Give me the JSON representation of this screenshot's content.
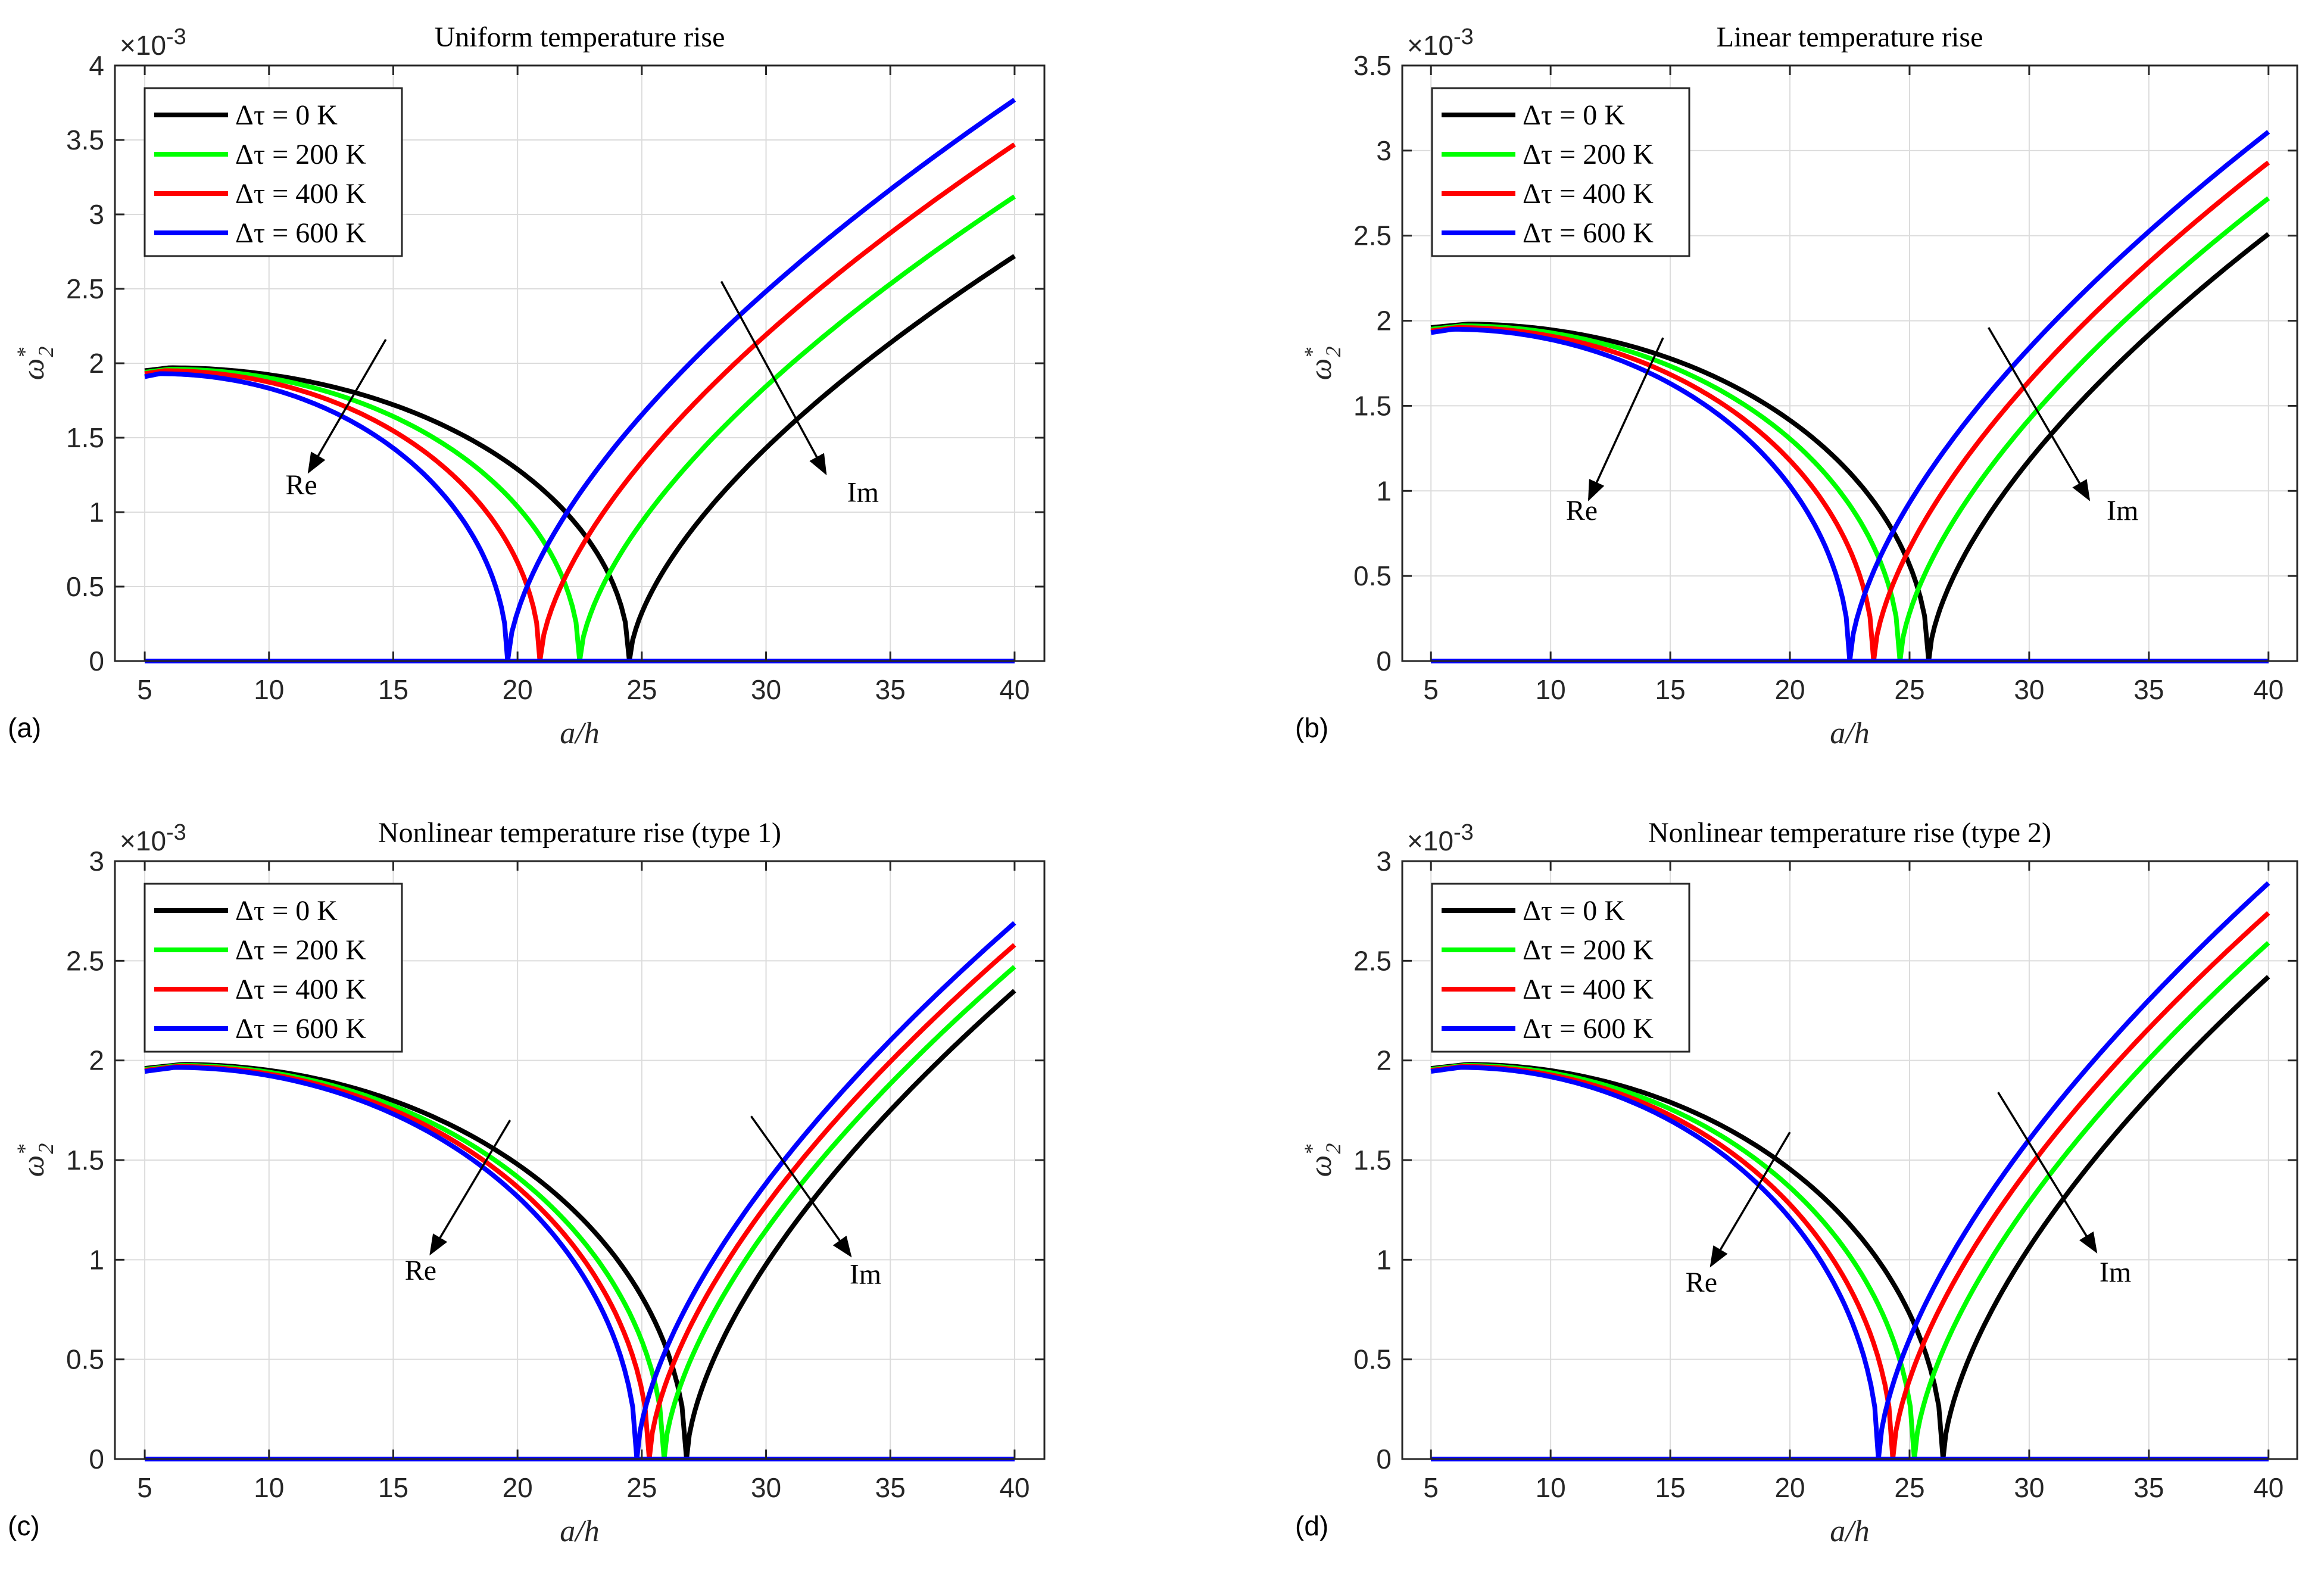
{
  "chart_data": [
    {
      "type": "line",
      "panel_label": "(a)",
      "title": "Uniform temperature rise",
      "xlabel": "a/h",
      "ylabel_main": "ω",
      "ylabel_sup": "*",
      "ylabel_sub": "2",
      "exponent_label": "×10",
      "exponent_power": "-3",
      "xlim": [
        3.8,
        41.2
      ],
      "ylim": [
        0,
        4
      ],
      "xticks": [
        5,
        10,
        15,
        20,
        25,
        30,
        35,
        40
      ],
      "xtick_labels": [
        "5",
        "10",
        "15",
        "20",
        "25",
        "30",
        "35",
        "40"
      ],
      "yticks": [
        0,
        0.5,
        1,
        1.5,
        2,
        2.5,
        3,
        3.5,
        4
      ],
      "ytick_labels": [
        "0",
        "0.5",
        "1",
        "1.5",
        "2",
        "2.5",
        "3",
        "3.5",
        "4"
      ],
      "grid": true,
      "legend_position": "top-left",
      "series": [
        {
          "name": "Δτ = 0 K",
          "color": "#000000",
          "x0": 24.5,
          "peak": 1.97,
          "peak_x": 6.0,
          "end": 2.72
        },
        {
          "name": "Δτ = 200 K",
          "color": "#00ff00",
          "x0": 22.5,
          "peak": 1.96,
          "peak_x": 6.0,
          "end": 3.12
        },
        {
          "name": "Δτ = 400 K",
          "color": "#ff0000",
          "x0": 20.9,
          "peak": 1.95,
          "peak_x": 5.8,
          "end": 3.47
        },
        {
          "name": "Δτ = 600 K",
          "color": "#0000ff",
          "x0": 19.6,
          "peak": 1.93,
          "peak_x": 5.6,
          "end": 3.77
        }
      ],
      "annotations": [
        {
          "text": "Re",
          "from": [
            14.7,
            2.16
          ],
          "to": [
            11.6,
            1.27
          ],
          "text_at": [
            11.3,
            1.12
          ]
        },
        {
          "text": "Im",
          "from": [
            28.2,
            2.55
          ],
          "to": [
            32.4,
            1.26
          ],
          "text_at": [
            33.9,
            1.07
          ]
        }
      ]
    },
    {
      "type": "line",
      "panel_label": "(b)",
      "title": "Linear temperature rise",
      "xlabel": "a/h",
      "ylabel_main": "ω",
      "ylabel_sup": "*",
      "ylabel_sub": "2",
      "exponent_label": "×10",
      "exponent_power": "-3",
      "xlim": [
        3.8,
        41.2
      ],
      "ylim": [
        0,
        3.5
      ],
      "xticks": [
        5,
        10,
        15,
        20,
        25,
        30,
        35,
        40
      ],
      "xtick_labels": [
        "5",
        "10",
        "15",
        "20",
        "25",
        "30",
        "35",
        "40"
      ],
      "yticks": [
        0,
        0.5,
        1,
        1.5,
        2,
        2.5,
        3,
        3.5
      ],
      "ytick_labels": [
        "0",
        "0.5",
        "1",
        "1.5",
        "2",
        "2.5",
        "3",
        "3.5"
      ],
      "grid": true,
      "legend_position": "top-left",
      "series": [
        {
          "name": "Δτ = 0 K",
          "color": "#000000",
          "x0": 25.8,
          "peak": 1.98,
          "peak_x": 6.5,
          "end": 2.51
        },
        {
          "name": "Δτ = 200 K",
          "color": "#00ff00",
          "x0": 24.6,
          "peak": 1.97,
          "peak_x": 6.3,
          "end": 2.72
        },
        {
          "name": "Δτ = 400 K",
          "color": "#ff0000",
          "x0": 23.5,
          "peak": 1.96,
          "peak_x": 6.1,
          "end": 2.93
        },
        {
          "name": "Δτ = 600 K",
          "color": "#0000ff",
          "x0": 22.5,
          "peak": 1.95,
          "peak_x": 5.9,
          "end": 3.11
        }
      ],
      "annotations": [
        {
          "text": "Re",
          "from": [
            14.7,
            1.9
          ],
          "to": [
            11.6,
            0.95
          ],
          "text_at": [
            11.3,
            0.83
          ]
        },
        {
          "text": "Im",
          "from": [
            28.3,
            1.96
          ],
          "to": [
            32.5,
            0.95
          ],
          "text_at": [
            33.9,
            0.83
          ]
        }
      ]
    },
    {
      "type": "line",
      "panel_label": "(c)",
      "title": "Nonlinear temperature rise (type 1)",
      "xlabel": "a/h",
      "ylabel_main": "ω",
      "ylabel_sup": "*",
      "ylabel_sub": "2",
      "exponent_label": "×10",
      "exponent_power": "-3",
      "xlim": [
        3.8,
        41.2
      ],
      "ylim": [
        0,
        3
      ],
      "xticks": [
        5,
        10,
        15,
        20,
        25,
        30,
        35,
        40
      ],
      "xtick_labels": [
        "5",
        "10",
        "15",
        "20",
        "25",
        "30",
        "35",
        "40"
      ],
      "yticks": [
        0,
        0.5,
        1,
        1.5,
        2,
        2.5,
        3
      ],
      "ytick_labels": [
        "0",
        "0.5",
        "1",
        "1.5",
        "2",
        "2.5",
        "3"
      ],
      "grid": true,
      "legend_position": "top-left",
      "series": [
        {
          "name": "Δτ = 0 K",
          "color": "#000000",
          "x0": 26.8,
          "peak": 1.98,
          "peak_x": 6.5,
          "end": 2.35
        },
        {
          "name": "Δτ = 200 K",
          "color": "#00ff00",
          "x0": 25.9,
          "peak": 1.975,
          "peak_x": 6.4,
          "end": 2.47
        },
        {
          "name": "Δτ = 400 K",
          "color": "#ff0000",
          "x0": 25.3,
          "peak": 1.97,
          "peak_x": 6.3,
          "end": 2.58
        },
        {
          "name": "Δτ = 600 K",
          "color": "#0000ff",
          "x0": 24.8,
          "peak": 1.965,
          "peak_x": 6.2,
          "end": 2.69
        }
      ],
      "annotations": [
        {
          "text": "Re",
          "from": [
            19.7,
            1.7
          ],
          "to": [
            16.5,
            1.03
          ],
          "text_at": [
            16.1,
            0.9
          ]
        },
        {
          "text": "Im",
          "from": [
            29.4,
            1.72
          ],
          "to": [
            33.4,
            1.02
          ],
          "text_at": [
            34.0,
            0.88
          ]
        }
      ]
    },
    {
      "type": "line",
      "panel_label": "(d)",
      "title": "Nonlinear temperature rise (type 2)",
      "xlabel": "a/h",
      "ylabel_main": "ω",
      "ylabel_sup": "*",
      "ylabel_sub": "2",
      "exponent_label": "×10",
      "exponent_power": "-3",
      "xlim": [
        3.8,
        41.2
      ],
      "ylim": [
        0,
        3
      ],
      "xticks": [
        5,
        10,
        15,
        20,
        25,
        30,
        35,
        40
      ],
      "xtick_labels": [
        "5",
        "10",
        "15",
        "20",
        "25",
        "30",
        "35",
        "40"
      ],
      "yticks": [
        0,
        0.5,
        1,
        1.5,
        2,
        2.5,
        3
      ],
      "ytick_labels": [
        "0",
        "0.5",
        "1",
        "1.5",
        "2",
        "2.5",
        "3"
      ],
      "grid": true,
      "legend_position": "top-left",
      "series": [
        {
          "name": "Δτ = 0 K",
          "color": "#000000",
          "x0": 26.4,
          "peak": 1.98,
          "peak_x": 6.5,
          "end": 2.42
        },
        {
          "name": "Δτ = 200 K",
          "color": "#00ff00",
          "x0": 25.2,
          "peak": 1.975,
          "peak_x": 6.4,
          "end": 2.59
        },
        {
          "name": "Δτ = 400 K",
          "color": "#ff0000",
          "x0": 24.3,
          "peak": 1.97,
          "peak_x": 6.3,
          "end": 2.74
        },
        {
          "name": "Δτ = 600 K",
          "color": "#0000ff",
          "x0": 23.7,
          "peak": 1.965,
          "peak_x": 6.2,
          "end": 2.89
        }
      ],
      "annotations": [
        {
          "text": "Re",
          "from": [
            20.0,
            1.64
          ],
          "to": [
            16.7,
            0.97
          ],
          "text_at": [
            16.3,
            0.84
          ]
        },
        {
          "text": "Im",
          "from": [
            28.7,
            1.84
          ],
          "to": [
            32.8,
            1.04
          ],
          "text_at": [
            33.6,
            0.89
          ]
        }
      ]
    }
  ]
}
